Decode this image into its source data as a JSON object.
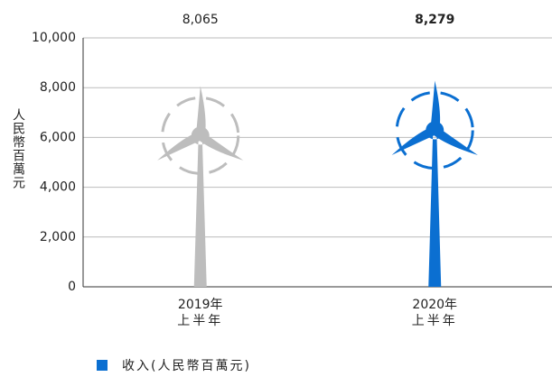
{
  "chart_data": {
    "type": "bar",
    "y_label": "人民幣百萬元",
    "categories": [
      [
        "2019年",
        "上半年"
      ],
      [
        "2020年",
        "上半年"
      ]
    ],
    "series": [
      {
        "name": "收入(人民幣百萬元)",
        "color": "#0b6fd1",
        "values": [
          8065,
          8279
        ],
        "value_labels": [
          "8,065",
          "8,279"
        ],
        "point_colors": [
          "#bdbdbd",
          "#0b6fd1"
        ]
      }
    ],
    "ylim": [
      0,
      10000
    ],
    "yticks": [
      0,
      {
        "value": 2000,
        "label": "2,000"
      },
      {
        "value": 4000,
        "label": "4,000"
      },
      {
        "value": 6000,
        "label": "6,000"
      },
      {
        "value": 8000,
        "label": "8,000"
      },
      {
        "value": 10000,
        "label": "10,000"
      }
    ],
    "grid": true
  }
}
